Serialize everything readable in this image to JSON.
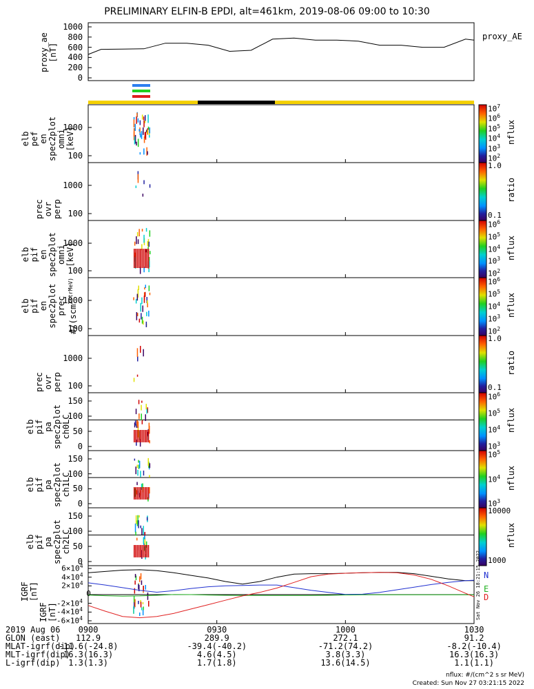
{
  "title": "PRELIMINARY ELFIN-B EPDI, alt=461km, 2019-08-06 09:00 to 10:30",
  "proxy_legend": "proxy_AE",
  "panels": [
    {
      "ylabel": "proxy_ae\n[nT]",
      "yticks": [
        "1000",
        "800",
        "600",
        "400",
        "200",
        "0"
      ]
    },
    {
      "ylabel": "elb\npef\nen\nspec2plot\nomni\n[keV]",
      "yticks": [
        "1000",
        "100"
      ],
      "cb_ticks": [
        "10^7",
        "10^6",
        "10^5",
        "10^4",
        "10^3",
        "10^2"
      ],
      "cb_label": "nflux"
    },
    {
      "ylabel": "prec\novr\nperp",
      "yticks": [
        "1000",
        "100"
      ],
      "cb_ticks": [
        "1.0",
        "0.1"
      ],
      "cb_label": "ratio"
    },
    {
      "ylabel": "elb\npif\nen\nspec2plot\nomni\n[keV]",
      "yticks": [
        "1000",
        "100"
      ],
      "cb_ticks": [
        "10^6",
        "10^5",
        "10^4",
        "10^3",
        "10^2"
      ],
      "cb_label": "nflux"
    },
    {
      "ylabel": "elb\npif\nen\nspec2plot\nprec\n#/(scm^2strMeV)",
      "yticks": [
        "1000",
        "100"
      ],
      "cb_ticks": [
        "10^6",
        "10^5",
        "10^4",
        "10^3",
        "10^2"
      ],
      "cb_label": "nflux"
    },
    {
      "ylabel": "prec\novr\nperp",
      "yticks": [
        "1000",
        "100"
      ],
      "cb_ticks": [
        "1.0",
        "0.1"
      ],
      "cb_label": "ratio"
    },
    {
      "ylabel": "elb\npif\npa\nspec2plot\nch0LC",
      "yticks": [
        "150",
        "100",
        "50",
        "0"
      ],
      "cb_ticks": [
        "10^6",
        "10^5",
        "10^4",
        "10^3"
      ],
      "cb_label": "nflux"
    },
    {
      "ylabel": "elb\npif\npa\nspec2plot\nch1LC",
      "yticks": [
        "150",
        "100",
        "50",
        "0"
      ],
      "cb_ticks": [
        "10^5",
        "10^4",
        "10^3"
      ],
      "cb_label": "nflux"
    },
    {
      "ylabel": "elb\npif\npa\nspec2plot\nch2LC",
      "yticks": [
        "150",
        "100",
        "50",
        "0"
      ],
      "cb_ticks": [
        "10000",
        "1000"
      ],
      "cb_label": "nflux"
    },
    {
      "ylabel": "IGRF\n[nT]",
      "yticks": [
        "6×10^4",
        "4×10^4",
        "2×10^4",
        "0",
        "-2×10^4",
        "-4×10^4",
        "-6×10^4"
      ]
    }
  ],
  "chart_data": {
    "type": "line",
    "x_label": "",
    "x_ticks": [
      "0900",
      "0930",
      "1000",
      "1030"
    ],
    "proxy_ae": {
      "x_min": [
        0,
        3,
        8,
        13,
        18,
        23,
        28,
        33,
        38,
        43,
        48,
        53,
        58,
        63,
        68,
        73,
        78,
        83,
        88,
        90
      ],
      "y_nT": [
        460,
        560,
        565,
        570,
        680,
        680,
        640,
        520,
        540,
        760,
        780,
        740,
        740,
        720,
        640,
        640,
        600,
        600,
        760,
        740
      ],
      "ylim": [
        0,
        1000
      ]
    },
    "igrf": {
      "ylim": [
        -60000,
        60000
      ],
      "legend": [
        "N",
        "E",
        "D"
      ],
      "colors": [
        "#2030d0",
        "#20b020",
        "#e02020"
      ],
      "x_min": [
        0,
        4,
        8,
        12,
        16,
        20,
        24,
        28,
        32,
        36,
        40,
        44,
        48,
        52,
        56,
        60,
        64,
        68,
        72,
        76,
        80,
        84,
        88,
        90
      ],
      "N": [
        27000,
        22000,
        16000,
        10000,
        5500,
        9000,
        14000,
        18000,
        20000,
        21000,
        22000,
        22000,
        16000,
        10000,
        5000,
        500,
        1000,
        5000,
        11000,
        17000,
        23000,
        28000,
        32000,
        33000
      ],
      "E": [
        -1000,
        -2500,
        -3500,
        -3000,
        -1500,
        200,
        0,
        -1000,
        -1500,
        -2000,
        -2000,
        -2000,
        -2000,
        -2000,
        -1500,
        -800,
        -500,
        -500,
        -500,
        -500,
        -500,
        -500,
        -500,
        -500
      ],
      "D": [
        -25000,
        -38000,
        -50000,
        -53000,
        -50000,
        -43000,
        -33000,
        -23000,
        -13000,
        -3000,
        5000,
        15000,
        28000,
        41000,
        47000,
        49000,
        50000,
        51000,
        50000,
        45000,
        35000,
        20000,
        3000,
        -5000
      ],
      "total": [
        50000,
        53000,
        56000,
        57000,
        55000,
        50000,
        44000,
        38000,
        30000,
        24000,
        30000,
        40000,
        47000,
        48000,
        48000,
        49000,
        50000,
        51000,
        51000,
        48000,
        42000,
        36000,
        32000,
        32000
      ]
    }
  },
  "ephem": {
    "labels": [
      "2019 Aug 06",
      "GLON (east)",
      "MLAT-igrf(dip)",
      "MLT-igrf(dip)",
      "L-igrf(dip)"
    ],
    "cols": [
      [
        "0900",
        "112.9",
        "-11.6(-24.8)",
        "16.3(16.3)",
        "1.3(1.3)"
      ],
      [
        "0930",
        "289.9",
        "-39.4(-40.2)",
        "4.6(4.5)",
        "1.7(1.8)"
      ],
      [
        "1000",
        "272.1",
        "-71.2(74.2)",
        "3.8(3.3)",
        "13.6(14.5)"
      ],
      [
        "1030",
        "91.2",
        "-8.2(-10.4)",
        "16.3(16.3)",
        "1.1(1.1)"
      ]
    ]
  },
  "footer": [
    "nflux: #/(cm^2 s sr MeV)",
    "Created: Sun Nov 27 03:21:15 2022"
  ],
  "side_stamp": "Sat Nov 26 18:21:15 2022"
}
